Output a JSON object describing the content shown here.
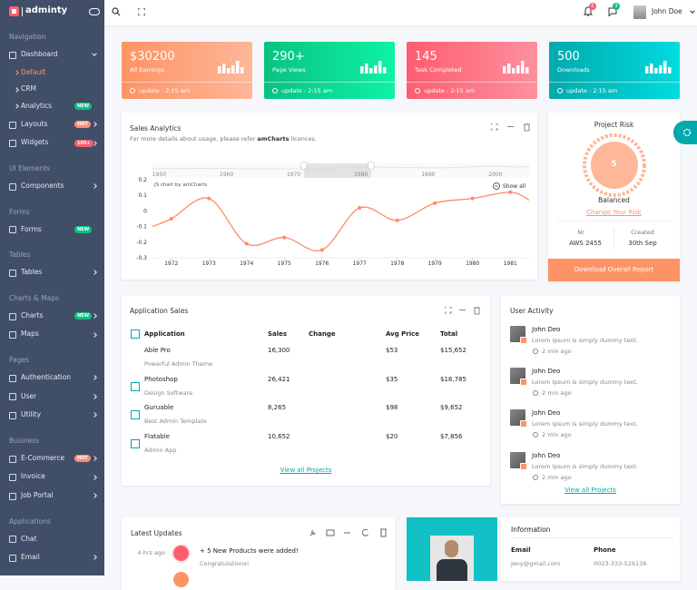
{
  "brand": "adminty",
  "header": {
    "notification_count": "5",
    "message_count": "3",
    "user": "John Doe"
  },
  "sidebar": [
    {
      "section": "Navigation",
      "items": [
        {
          "label": "Dashboard",
          "submenu": true,
          "open": true,
          "children": [
            {
              "label": "Default",
              "active": true
            },
            {
              "label": "CRM"
            },
            {
              "label": "Analytics",
              "badge": "NEW",
              "badge_color": "#0ac282"
            }
          ]
        },
        {
          "label": "Layouts",
          "submenu": true,
          "badge": "HOT",
          "badge_color": "#fe8a7d"
        },
        {
          "label": "Widgets",
          "submenu": true,
          "badge": "100+",
          "badge_color": "#fe5d70"
        }
      ]
    },
    {
      "section": "UI Elements",
      "items": [
        {
          "label": "Components",
          "submenu": true
        }
      ]
    },
    {
      "section": "Forms",
      "items": [
        {
          "label": "Forms",
          "badge": "NEW",
          "badge_color": "#0ac282"
        }
      ]
    },
    {
      "section": "Tables",
      "items": [
        {
          "label": "Tables",
          "submenu": true
        }
      ]
    },
    {
      "section": "Charts & Maps",
      "items": [
        {
          "label": "Charts",
          "submenu": true,
          "badge": "NEW",
          "badge_color": "#0ac282"
        },
        {
          "label": "Maps",
          "submenu": true
        }
      ]
    },
    {
      "section": "Pages",
      "items": [
        {
          "label": "Authentication",
          "submenu": true
        },
        {
          "label": "User",
          "submenu": true
        },
        {
          "label": "Utility",
          "submenu": true
        }
      ]
    },
    {
      "section": "Business",
      "items": [
        {
          "label": "E-Commerce",
          "submenu": true,
          "badge": "HOT",
          "badge_color": "#fe8a7d"
        },
        {
          "label": "Invoice",
          "submenu": true
        },
        {
          "label": "Job Portal",
          "submenu": true
        }
      ]
    },
    {
      "section": "Applications",
      "items": [
        {
          "label": "Chat"
        },
        {
          "label": "Email",
          "submenu": true
        }
      ]
    }
  ],
  "stat_cards": [
    {
      "value": "$30200",
      "label": "All Earnings",
      "update": "update : 2:15 am",
      "color": "#fe9365",
      "color2": "#feb798"
    },
    {
      "value": "290+",
      "label": "Page Views",
      "update": "update : 2:15 am",
      "color": "#0ac282",
      "color2": "#0df3a3"
    },
    {
      "value": "145",
      "label": "Task Completed",
      "update": "update : 2:15 am",
      "color": "#fe5d70",
      "color2": "#fe909d"
    },
    {
      "value": "500",
      "label": "Downloads",
      "update": "update : 2:15 am",
      "color": "#01a9ac",
      "color2": "#01dbdf"
    }
  ],
  "chart_data": {
    "type": "line",
    "title": "Sales Analytics",
    "subtitle": "For more details about usage, please refer ",
    "subtitle_link": "amCharts",
    "subtitle_end": " licences.",
    "credit": "JS chart by amCharts",
    "show_all": "Show all",
    "x": [
      1971.5,
      1972,
      1973,
      1974,
      1975,
      1976,
      1977,
      1978,
      1979,
      1980,
      1981,
      1981.5
    ],
    "values": [
      -0.1,
      -0.05,
      0.08,
      -0.21,
      -0.17,
      -0.25,
      0.02,
      -0.06,
      0.05,
      0.08,
      0.12,
      0.07
    ],
    "color": "#fe8a65",
    "xlim": [
      1971.5,
      1981.5
    ],
    "xticks": [
      1972,
      1973,
      1974,
      1975,
      1976,
      1977,
      1978,
      1979,
      1980,
      1981
    ],
    "ylim": [
      -0.3,
      0.2
    ],
    "yticks": [
      0.2,
      0.1,
      0,
      -0.1,
      -0.2,
      -0.3
    ],
    "grid": false,
    "scrollbar": {
      "xlim": [
        1949,
        2005
      ],
      "xticks": [
        1950,
        1960,
        1970,
        1980,
        1990,
        2000
      ]
    }
  },
  "project_risk": {
    "title": "Project Risk",
    "score": "5",
    "status": "Balanced",
    "link": "Change Your Risk",
    "nr_label": "Nr",
    "nr_value": "AWS 2455",
    "created_label": "Created",
    "created_value": "30th Sep",
    "button": "Download Overall Report"
  },
  "application_sales": {
    "title": "Application Sales",
    "headers": [
      "Application",
      "Sales",
      "Change",
      "Avg Price",
      "Total"
    ],
    "rows": [
      {
        "name": "Able Pro",
        "description": "Powerful Admin Theme",
        "sales": "16,300",
        "avg_price": "$53",
        "total": "$15,652",
        "checkbox": false
      },
      {
        "name": "Photoshop",
        "description": "Design Software",
        "sales": "26,421",
        "avg_price": "$35",
        "total": "$18,785",
        "checkbox": true
      },
      {
        "name": "Guruable",
        "description": "Best Admin Template",
        "sales": "8,265",
        "avg_price": "$98",
        "total": "$9,652",
        "checkbox": true
      },
      {
        "name": "Flatable",
        "description": "Admin App",
        "sales": "10,652",
        "avg_price": "$20",
        "total": "$7,856",
        "checkbox": true
      }
    ],
    "link": "View all Projects"
  },
  "user_activity": {
    "title": "User Activity",
    "items": [
      {
        "name": "John Deo",
        "text": "Lorem Ipsum is simply dummy text.",
        "time": "2 min ago"
      },
      {
        "name": "John Deo",
        "text": "Lorem Ipsum is simply dummy text.",
        "time": "2 min ago"
      },
      {
        "name": "John Deo",
        "text": "Lorem Ipsum is simply dummy text.",
        "time": "2 min ago"
      },
      {
        "name": "John Deo",
        "text": "Lorem Ipsum is simply dummy text.",
        "time": "2 min ago"
      }
    ],
    "link": "View all Projects"
  },
  "latest_updates": {
    "title": "Latest Updates",
    "items": [
      {
        "time": "4 hrs ago",
        "text": "+ 5 New Products were added!",
        "subtext": "Congratulations!"
      }
    ]
  },
  "information": {
    "title": "Information",
    "email_label": "Email",
    "email": "jeny@gmail.com",
    "phone_label": "Phone",
    "phone": "0023-333-526136"
  }
}
